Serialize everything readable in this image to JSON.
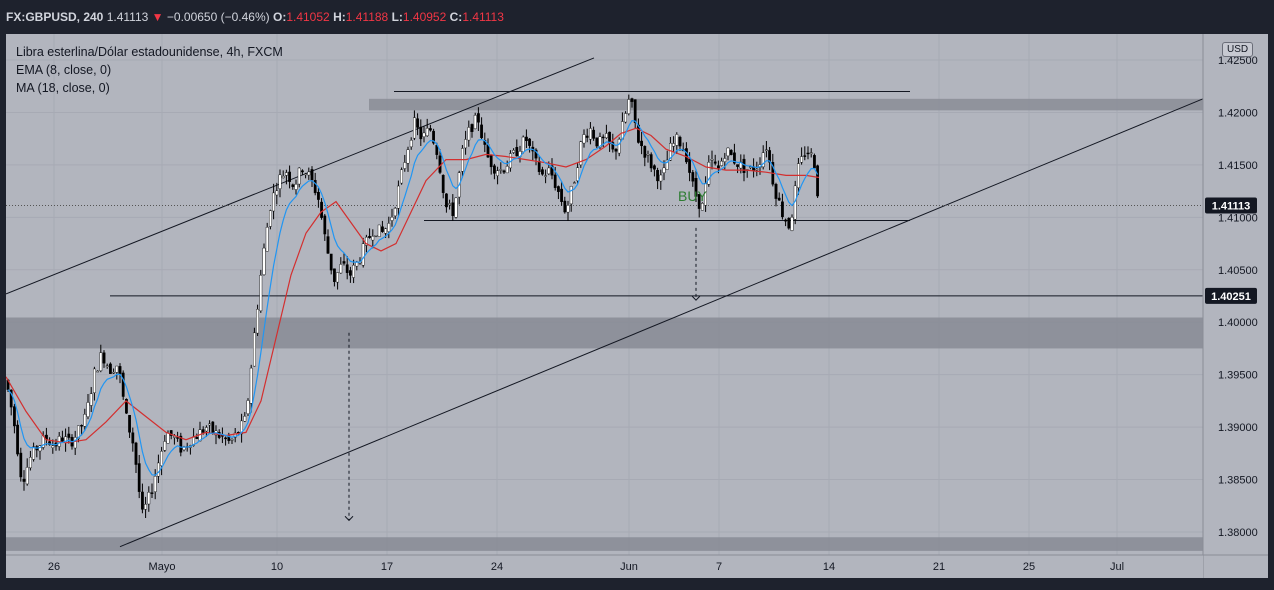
{
  "header": {
    "symbol": "FX:GBPUSD, 240",
    "last": "1.41113",
    "change_arrow": "▼",
    "change": "−0.00650 (−0.46%)",
    "o_label": "O:",
    "o": "1.41052",
    "h_label": "H:",
    "h": "1.41188",
    "l_label": "L:",
    "l": "1.40952",
    "c_label": "C:",
    "c": "1.41113"
  },
  "legend": {
    "title": "Libra esterlina/Dólar estadounidense, 4h, FXCM",
    "ema": "EMA (8, close, 0)",
    "ma": "MA (18, close, 0)"
  },
  "currency": "USD",
  "colors": {
    "background": "#b2b5be",
    "grid": "#a4a7b1",
    "up": "#ffffff",
    "down": "#000000",
    "ema": "#2196f3",
    "ma": "#d32f2f",
    "zone": "#8a8d97",
    "price_tag": "#131722"
  },
  "chart_data": {
    "type": "candlestick",
    "ylim": [
      1.3777,
      1.4258
    ],
    "y_ticks": [
      "1.42500",
      "1.42000",
      "1.41500",
      "1.41000",
      "1.40500",
      "1.40000",
      "1.39500",
      "1.39000",
      "1.38500",
      "1.38000"
    ],
    "x_ticks": [
      "26",
      "Mayo",
      "10",
      "17",
      "24",
      "Jun",
      "7",
      "14",
      "21",
      "25",
      "Jul"
    ],
    "price_labels": [
      "1.41113",
      "1.40251"
    ],
    "annotation": "BUY",
    "path_points": [
      [
        0,
        1.3945
      ],
      [
        8,
        1.3905
      ],
      [
        16,
        1.3848
      ],
      [
        24,
        1.387
      ],
      [
        32,
        1.3882
      ],
      [
        40,
        1.389
      ],
      [
        48,
        1.3882
      ],
      [
        56,
        1.389
      ],
      [
        64,
        1.3885
      ],
      [
        72,
        1.3895
      ],
      [
        80,
        1.391
      ],
      [
        88,
        1.395
      ],
      [
        96,
        1.397
      ],
      [
        104,
        1.3955
      ],
      [
        112,
        1.396
      ],
      [
        120,
        1.391
      ],
      [
        128,
        1.3882
      ],
      [
        136,
        1.3815
      ],
      [
        144,
        1.3835
      ],
      [
        152,
        1.3865
      ],
      [
        160,
        1.3895
      ],
      [
        168,
        1.389
      ],
      [
        176,
        1.3878
      ],
      [
        184,
        1.3888
      ],
      [
        192,
        1.3893
      ],
      [
        200,
        1.39
      ],
      [
        208,
        1.3895
      ],
      [
        216,
        1.389
      ],
      [
        224,
        1.3885
      ],
      [
        232,
        1.3895
      ],
      [
        240,
        1.3908
      ],
      [
        248,
        1.3985
      ],
      [
        256,
        1.4055
      ],
      [
        264,
        1.411
      ],
      [
        272,
        1.4135
      ],
      [
        280,
        1.4145
      ],
      [
        288,
        1.413
      ],
      [
        296,
        1.4148
      ],
      [
        304,
        1.4138
      ],
      [
        312,
        1.412
      ],
      [
        320,
        1.4075
      ],
      [
        328,
        1.404
      ],
      [
        336,
        1.4055
      ],
      [
        344,
        1.4045
      ],
      [
        352,
        1.4058
      ],
      [
        360,
        1.4075
      ],
      [
        368,
        1.409
      ],
      [
        376,
        1.4085
      ],
      [
        384,
        1.4095
      ],
      [
        392,
        1.4125
      ],
      [
        400,
        1.416
      ],
      [
        408,
        1.419
      ],
      [
        416,
        1.4175
      ],
      [
        424,
        1.4185
      ],
      [
        432,
        1.416
      ],
      [
        440,
        1.411
      ],
      [
        448,
        1.4105
      ],
      [
        456,
        1.416
      ],
      [
        464,
        1.4185
      ],
      [
        472,
        1.4195
      ],
      [
        480,
        1.416
      ],
      [
        488,
        1.4148
      ],
      [
        496,
        1.4145
      ],
      [
        504,
        1.4155
      ],
      [
        512,
        1.4165
      ],
      [
        520,
        1.4175
      ],
      [
        528,
        1.4155
      ],
      [
        536,
        1.414
      ],
      [
        544,
        1.4145
      ],
      [
        552,
        1.4125
      ],
      [
        560,
        1.4105
      ],
      [
        568,
        1.4135
      ],
      [
        576,
        1.4175
      ],
      [
        584,
        1.4185
      ],
      [
        592,
        1.417
      ],
      [
        600,
        1.4175
      ],
      [
        608,
        1.416
      ],
      [
        616,
        1.4185
      ],
      [
        624,
        1.4215
      ],
      [
        632,
        1.4175
      ],
      [
        640,
        1.416
      ],
      [
        648,
        1.4145
      ],
      [
        656,
        1.4135
      ],
      [
        664,
        1.4165
      ],
      [
        672,
        1.4175
      ],
      [
        680,
        1.416
      ],
      [
        688,
        1.4125
      ],
      [
        696,
        1.4108
      ],
      [
        704,
        1.4155
      ],
      [
        712,
        1.4145
      ],
      [
        720,
        1.4165
      ],
      [
        728,
        1.4155
      ],
      [
        736,
        1.4148
      ],
      [
        744,
        1.4145
      ],
      [
        752,
        1.415
      ],
      [
        760,
        1.417
      ],
      [
        768,
        1.413
      ],
      [
        776,
        1.4105
      ],
      [
        784,
        1.409
      ],
      [
        792,
        1.4145
      ],
      [
        800,
        1.4165
      ],
      [
        808,
        1.4155
      ],
      [
        813,
        1.4113
      ]
    ],
    "ma_points": [
      [
        0,
        1.3948
      ],
      [
        20,
        1.3915
      ],
      [
        40,
        1.3888
      ],
      [
        60,
        1.3885
      ],
      [
        80,
        1.3888
      ],
      [
        100,
        1.3905
      ],
      [
        120,
        1.3925
      ],
      [
        140,
        1.391
      ],
      [
        160,
        1.3895
      ],
      [
        180,
        1.3888
      ],
      [
        200,
        1.3895
      ],
      [
        220,
        1.3892
      ],
      [
        240,
        1.3895
      ],
      [
        255,
        1.3925
      ],
      [
        270,
        1.3985
      ],
      [
        285,
        1.4045
      ],
      [
        300,
        1.4085
      ],
      [
        315,
        1.4105
      ],
      [
        330,
        1.4115
      ],
      [
        345,
        1.4095
      ],
      [
        360,
        1.4075
      ],
      [
        375,
        1.4068
      ],
      [
        390,
        1.4075
      ],
      [
        405,
        1.4105
      ],
      [
        420,
        1.4135
      ],
      [
        440,
        1.4155
      ],
      [
        460,
        1.4155
      ],
      [
        480,
        1.416
      ],
      [
        500,
        1.4158
      ],
      [
        520,
        1.4155
      ],
      [
        540,
        1.4152
      ],
      [
        560,
        1.4148
      ],
      [
        580,
        1.4155
      ],
      [
        600,
        1.4168
      ],
      [
        615,
        1.418
      ],
      [
        630,
        1.4185
      ],
      [
        645,
        1.4178
      ],
      [
        660,
        1.4165
      ],
      [
        680,
        1.4158
      ],
      [
        700,
        1.4148
      ],
      [
        720,
        1.4145
      ],
      [
        740,
        1.4145
      ],
      [
        760,
        1.4143
      ],
      [
        780,
        1.414
      ],
      [
        800,
        1.414
      ],
      [
        813,
        1.4138
      ]
    ]
  }
}
